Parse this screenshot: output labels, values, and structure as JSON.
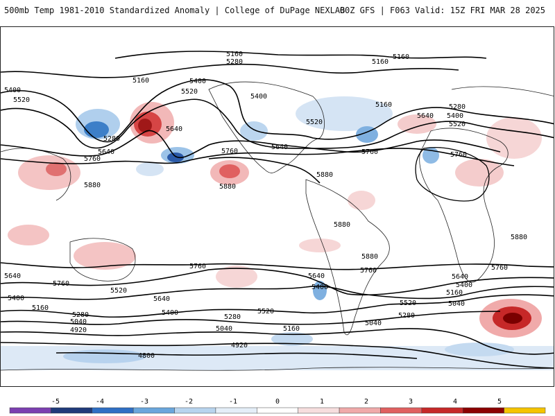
{
  "header": {
    "title_left": "500mb Temp 1981-2010 Standardized Anomaly | College of DuPage NEXLAB",
    "title_right": "00Z GFS | F063 Valid: 15Z FRI MAR 28 2025"
  },
  "contours": {
    "labels": [
      "5160",
      "5280",
      "5400",
      "5520",
      "5640",
      "5760",
      "5880",
      "5040",
      "4920",
      "4800"
    ]
  },
  "colorbar": {
    "ticks": [
      "-5",
      "-4",
      "-3",
      "-2",
      "-1",
      "0",
      "1",
      "2",
      "3",
      "4",
      "5"
    ],
    "colors": [
      "#7b3fb0",
      "#1f3a7a",
      "#2f6fc4",
      "#6aa6dc",
      "#b8d4ee",
      "#e4eef8",
      "#ffffff",
      "#f7dede",
      "#f0aaaa",
      "#e06060",
      "#c62828",
      "#8b0000",
      "#f5c400"
    ]
  }
}
